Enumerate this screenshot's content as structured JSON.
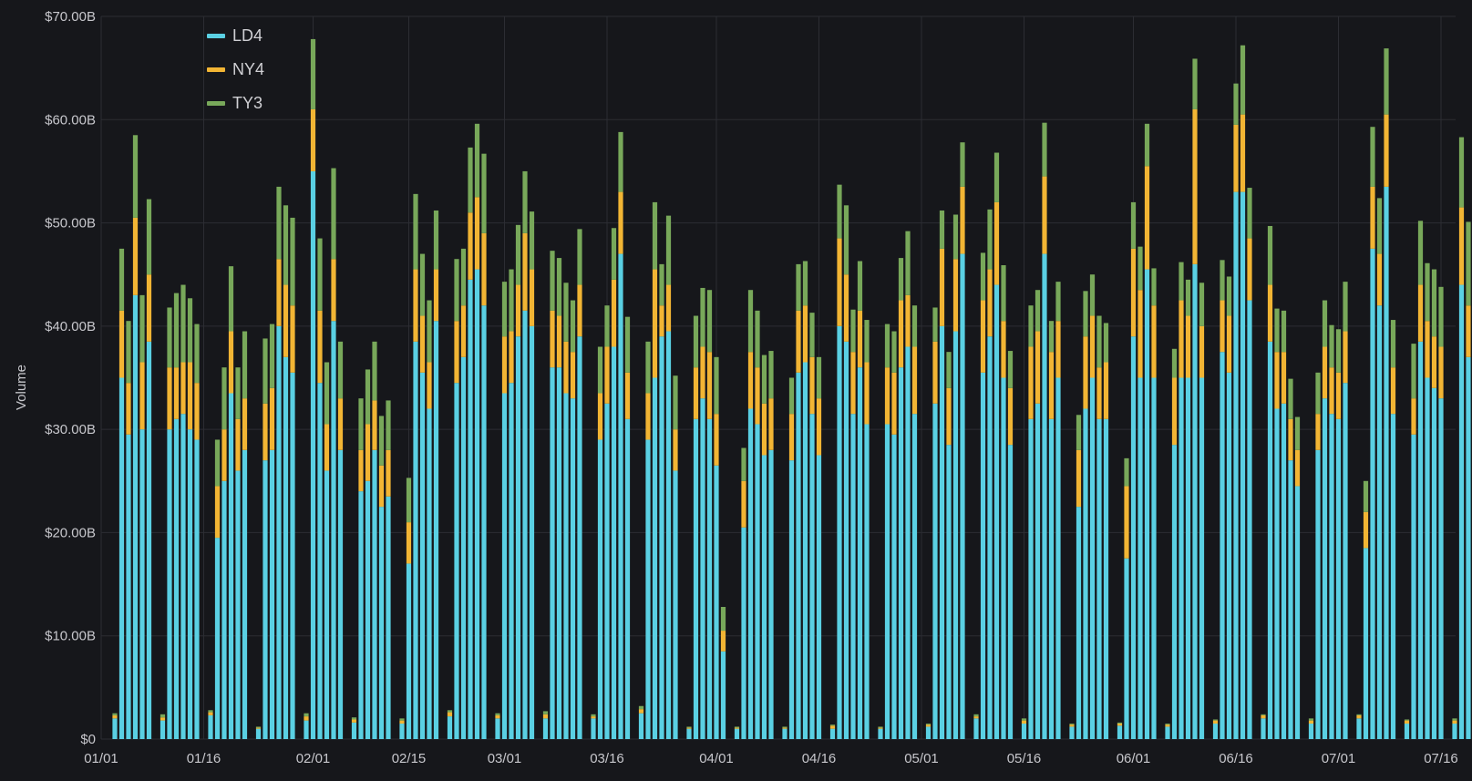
{
  "colors": {
    "background": "#16171b",
    "grid": "#2c2d33",
    "LD4": "#5ad0e3",
    "NY4": "#f2b534",
    "TY3": "#78a85a"
  },
  "chart_data": {
    "type": "bar",
    "stacked": true,
    "xlabel": "",
    "ylabel": "Volume",
    "ylim": [
      0,
      70
    ],
    "y_unit": "$ billions",
    "y_ticks": [
      "$0",
      "$10.00B",
      "$20.00B",
      "$30.00B",
      "$40.00B",
      "$50.00B",
      "$60.00B",
      "$70.00B"
    ],
    "x_ticks": [
      "01/01",
      "01/16",
      "02/01",
      "02/15",
      "03/01",
      "03/16",
      "04/01",
      "04/16",
      "05/01",
      "05/16",
      "06/01",
      "06/16",
      "07/01",
      "07/16"
    ],
    "x_range": [
      "2021-01-01",
      "2021-07-30"
    ],
    "grid": true,
    "legend_position": "top-left",
    "series": [
      {
        "name": "LD4",
        "color": "#5ad0e3"
      },
      {
        "name": "NY4",
        "color": "#f2b534"
      },
      {
        "name": "TY3",
        "color": "#78a85a"
      }
    ],
    "bars": [
      [
        "01/03",
        2.0,
        0.3,
        0.2
      ],
      [
        "01/04",
        35.0,
        6.5,
        6.0
      ],
      [
        "01/05",
        29.5,
        5.0,
        6.0
      ],
      [
        "01/06",
        43.0,
        7.5,
        8.0
      ],
      [
        "01/07",
        30.0,
        6.5,
        6.5
      ],
      [
        "01/08",
        38.5,
        6.5,
        7.3
      ],
      [
        "01/10",
        1.8,
        0.3,
        0.3
      ],
      [
        "01/11",
        30.0,
        6.0,
        5.8
      ],
      [
        "01/12",
        31.0,
        5.0,
        7.2
      ],
      [
        "01/13",
        31.5,
        5.0,
        7.5
      ],
      [
        "01/14",
        30.0,
        6.5,
        6.2
      ],
      [
        "01/15",
        29.0,
        5.5,
        5.7
      ],
      [
        "01/17",
        2.3,
        0.3,
        0.2
      ],
      [
        "01/18",
        19.5,
        5.0,
        4.5
      ],
      [
        "01/19",
        25.0,
        5.0,
        6.0
      ],
      [
        "01/20",
        33.5,
        6.0,
        6.3
      ],
      [
        "01/21",
        26.0,
        5.0,
        5.0
      ],
      [
        "01/22",
        28.0,
        5.0,
        6.5
      ],
      [
        "01/24",
        1.0,
        0.1,
        0.1
      ],
      [
        "01/25",
        27.0,
        5.5,
        6.3
      ],
      [
        "01/26",
        28.0,
        6.0,
        6.2
      ],
      [
        "01/27",
        40.0,
        6.5,
        7.0
      ],
      [
        "01/28",
        37.0,
        7.0,
        7.7
      ],
      [
        "01/29",
        35.5,
        6.5,
        8.5
      ],
      [
        "01/31",
        1.8,
        0.4,
        0.3
      ],
      [
        "02/01",
        55.0,
        6.0,
        6.8
      ],
      [
        "02/02",
        34.5,
        7.0,
        7.0
      ],
      [
        "02/03",
        26.0,
        4.5,
        6.0
      ],
      [
        "02/04",
        40.5,
        6.0,
        8.8
      ],
      [
        "02/05",
        28.0,
        5.0,
        5.5
      ],
      [
        "02/07",
        1.6,
        0.3,
        0.2
      ],
      [
        "02/08",
        24.0,
        4.0,
        5.0
      ],
      [
        "02/09",
        25.0,
        5.5,
        5.3
      ],
      [
        "02/10",
        28.0,
        4.8,
        5.7
      ],
      [
        "02/11",
        22.5,
        4.0,
        4.8
      ],
      [
        "02/12",
        23.5,
        4.5,
        4.8
      ],
      [
        "02/14",
        1.5,
        0.3,
        0.2
      ],
      [
        "02/15",
        17.0,
        4.0,
        4.3
      ],
      [
        "02/16",
        38.5,
        7.0,
        7.3
      ],
      [
        "02/17",
        35.5,
        5.5,
        6.0
      ],
      [
        "02/18",
        32.0,
        4.5,
        6.0
      ],
      [
        "02/19",
        40.5,
        5.0,
        5.7
      ],
      [
        "02/21",
        2.2,
        0.4,
        0.2
      ],
      [
        "02/22",
        34.5,
        6.0,
        6.0
      ],
      [
        "02/23",
        37.0,
        5.0,
        5.5
      ],
      [
        "02/24",
        44.5,
        6.5,
        6.3
      ],
      [
        "02/25",
        45.5,
        7.0,
        7.1
      ],
      [
        "02/26",
        42.0,
        7.0,
        7.7
      ],
      [
        "02/28",
        2.0,
        0.3,
        0.2
      ],
      [
        "03/01",
        33.5,
        5.5,
        5.3
      ],
      [
        "03/02",
        34.5,
        5.0,
        6.0
      ],
      [
        "03/03",
        39.0,
        5.0,
        5.8
      ],
      [
        "03/04",
        41.5,
        7.5,
        6.0
      ],
      [
        "03/05",
        40.0,
        5.5,
        5.6
      ],
      [
        "03/07",
        2.0,
        0.4,
        0.3
      ],
      [
        "03/08",
        36.0,
        5.5,
        5.8
      ],
      [
        "03/09",
        36.0,
        5.0,
        5.6
      ],
      [
        "03/10",
        33.5,
        5.0,
        5.7
      ],
      [
        "03/11",
        33.0,
        4.5,
        5.0
      ],
      [
        "03/12",
        39.0,
        5.0,
        5.4
      ],
      [
        "03/14",
        2.0,
        0.2,
        0.2
      ],
      [
        "03/15",
        29.0,
        4.5,
        4.5
      ],
      [
        "03/16",
        32.5,
        5.5,
        4.0
      ],
      [
        "03/17",
        38.0,
        6.5,
        5.0
      ],
      [
        "03/18",
        47.0,
        6.0,
        5.8
      ],
      [
        "03/19",
        31.0,
        4.5,
        5.4
      ],
      [
        "03/21",
        2.5,
        0.4,
        0.3
      ],
      [
        "03/22",
        29.0,
        4.5,
        5.0
      ],
      [
        "03/23",
        35.0,
        10.5,
        6.5
      ],
      [
        "03/24",
        39.0,
        3.0,
        4.0
      ],
      [
        "03/25",
        39.5,
        4.5,
        6.7
      ],
      [
        "03/26",
        26.0,
        4.0,
        5.2
      ],
      [
        "03/28",
        1.0,
        0.1,
        0.1
      ],
      [
        "03/29",
        31.0,
        5.0,
        5.0
      ],
      [
        "03/30",
        33.0,
        5.0,
        5.7
      ],
      [
        "03/31",
        31.0,
        6.5,
        6.0
      ],
      [
        "04/01",
        26.5,
        5.0,
        5.5
      ],
      [
        "04/02",
        8.5,
        2.0,
        2.3
      ],
      [
        "04/04",
        1.0,
        0.1,
        0.1
      ],
      [
        "04/05",
        20.5,
        4.5,
        3.2
      ],
      [
        "04/06",
        32.0,
        5.5,
        6.0
      ],
      [
        "04/07",
        30.5,
        5.5,
        5.5
      ],
      [
        "04/08",
        27.5,
        5.0,
        4.7
      ],
      [
        "04/09",
        28.0,
        5.0,
        4.6
      ],
      [
        "04/11",
        1.0,
        0.1,
        0.1
      ],
      [
        "04/12",
        27.0,
        4.5,
        3.5
      ],
      [
        "04/13",
        35.5,
        6.0,
        4.5
      ],
      [
        "04/14",
        36.5,
        5.5,
        4.3
      ],
      [
        "04/15",
        31.5,
        5.5,
        4.3
      ],
      [
        "04/16",
        27.5,
        5.5,
        4.0
      ],
      [
        "04/18",
        1.0,
        0.3,
        0.1
      ],
      [
        "04/19",
        40.0,
        8.5,
        5.2
      ],
      [
        "04/20",
        38.5,
        6.5,
        6.7
      ],
      [
        "04/21",
        31.5,
        6.0,
        4.1
      ],
      [
        "04/22",
        36.0,
        5.5,
        4.8
      ],
      [
        "04/23",
        30.5,
        6.0,
        4.1
      ],
      [
        "04/25",
        1.0,
        0.1,
        0.1
      ],
      [
        "04/26",
        30.5,
        5.5,
        4.2
      ],
      [
        "04/27",
        29.5,
        6.0,
        4.0
      ],
      [
        "04/28",
        36.0,
        6.5,
        4.1
      ],
      [
        "04/29",
        38.0,
        5.0,
        6.2
      ],
      [
        "04/30",
        31.5,
        6.5,
        4.0
      ],
      [
        "05/02",
        1.2,
        0.2,
        0.1
      ],
      [
        "05/03",
        32.5,
        6.0,
        3.3
      ],
      [
        "05/04",
        40.0,
        7.5,
        3.7
      ],
      [
        "05/05",
        28.5,
        5.5,
        3.5
      ],
      [
        "05/06",
        39.5,
        7.0,
        4.3
      ],
      [
        "05/07",
        47.0,
        6.5,
        4.3
      ],
      [
        "05/09",
        2.0,
        0.2,
        0.2
      ],
      [
        "05/10",
        35.5,
        7.0,
        4.6
      ],
      [
        "05/11",
        39.0,
        6.5,
        5.8
      ],
      [
        "05/12",
        44.0,
        8.0,
        4.8
      ],
      [
        "05/13",
        35.0,
        5.5,
        5.4
      ],
      [
        "05/14",
        28.5,
        5.5,
        3.6
      ],
      [
        "05/16",
        1.5,
        0.3,
        0.2
      ],
      [
        "05/17",
        31.0,
        7.0,
        4.0
      ],
      [
        "05/18",
        32.5,
        7.0,
        4.0
      ],
      [
        "05/19",
        47.0,
        7.5,
        5.2
      ],
      [
        "05/20",
        31.0,
        6.5,
        3.0
      ],
      [
        "05/21",
        35.0,
        5.5,
        3.8
      ],
      [
        "05/23",
        1.2,
        0.2,
        0.1
      ],
      [
        "05/24",
        22.5,
        5.5,
        3.4
      ],
      [
        "05/25",
        32.0,
        7.0,
        4.4
      ],
      [
        "05/26",
        35.0,
        6.0,
        4.0
      ],
      [
        "05/27",
        31.0,
        5.0,
        5.0
      ],
      [
        "05/28",
        31.0,
        5.5,
        3.8
      ],
      [
        "05/30",
        1.3,
        0.2,
        0.1
      ],
      [
        "05/31",
        17.5,
        7.0,
        2.7
      ],
      [
        "06/01",
        39.0,
        8.5,
        4.5
      ],
      [
        "06/02",
        35.0,
        8.5,
        4.2
      ],
      [
        "06/03",
        45.5,
        10.0,
        4.1
      ],
      [
        "06/04",
        35.0,
        7.0,
        3.6
      ],
      [
        "06/06",
        1.2,
        0.2,
        0.1
      ],
      [
        "06/07",
        28.5,
        6.5,
        2.8
      ],
      [
        "06/08",
        35.0,
        7.5,
        3.7
      ],
      [
        "06/09",
        35.0,
        6.0,
        3.5
      ],
      [
        "06/10",
        46.0,
        15.0,
        4.9
      ],
      [
        "06/11",
        35.0,
        5.0,
        4.2
      ],
      [
        "06/13",
        1.5,
        0.3,
        0.1
      ],
      [
        "06/14",
        37.5,
        5.0,
        3.9
      ],
      [
        "06/15",
        35.5,
        5.5,
        3.8
      ],
      [
        "06/16",
        53.0,
        6.5,
        4.0
      ],
      [
        "06/17",
        53.0,
        7.5,
        6.7
      ],
      [
        "06/18",
        42.5,
        6.0,
        4.9
      ],
      [
        "06/20",
        2.0,
        0.3,
        0.1
      ],
      [
        "06/21",
        38.5,
        5.5,
        5.7
      ],
      [
        "06/22",
        32.0,
        5.5,
        4.2
      ],
      [
        "06/23",
        32.5,
        5.0,
        4.0
      ],
      [
        "06/24",
        27.0,
        4.0,
        3.9
      ],
      [
        "06/25",
        24.5,
        3.5,
        3.2
      ],
      [
        "06/27",
        1.5,
        0.3,
        0.2
      ],
      [
        "06/28",
        28.0,
        3.5,
        4.0
      ],
      [
        "06/29",
        33.0,
        5.0,
        4.5
      ],
      [
        "06/30",
        31.5,
        4.5,
        4.1
      ],
      [
        "07/01",
        31.0,
        4.5,
        4.2
      ],
      [
        "07/02",
        34.5,
        5.0,
        4.8
      ],
      [
        "07/04",
        2.0,
        0.3,
        0.1
      ],
      [
        "07/05",
        18.5,
        3.5,
        3.0
      ],
      [
        "07/06",
        47.5,
        6.0,
        5.8
      ],
      [
        "07/07",
        42.0,
        5.0,
        5.4
      ],
      [
        "07/08",
        53.5,
        7.0,
        6.4
      ],
      [
        "07/09",
        31.5,
        4.5,
        4.6
      ],
      [
        "07/11",
        1.5,
        0.3,
        0.1
      ],
      [
        "07/12",
        29.5,
        3.5,
        5.3
      ],
      [
        "07/13",
        38.5,
        5.5,
        6.2
      ],
      [
        "07/14",
        35.0,
        5.5,
        5.6
      ],
      [
        "07/15",
        34.0,
        5.0,
        6.5
      ],
      [
        "07/16",
        33.0,
        5.0,
        5.8
      ],
      [
        "07/18",
        1.5,
        0.3,
        0.2
      ],
      [
        "07/19",
        44.0,
        7.5,
        6.8
      ],
      [
        "07/20",
        37.0,
        5.0,
        8.1
      ],
      [
        "07/21",
        30.5,
        5.5,
        4.8
      ],
      [
        "07/22",
        34.5,
        5.5,
        6.5
      ],
      [
        "07/23",
        26.0,
        4.5,
        4.9
      ],
      [
        "07/25",
        1.2,
        0.3,
        0.2
      ],
      [
        "07/26",
        29.0,
        5.5,
        5.5
      ],
      [
        "07/27",
        46.5,
        6.5,
        7.0
      ],
      [
        "07/28",
        46.5,
        6.0,
        6.3
      ],
      [
        "07/29",
        35.0,
        4.5,
        5.8
      ],
      [
        "07/30",
        35.0,
        5.0,
        5.4
      ]
    ]
  }
}
